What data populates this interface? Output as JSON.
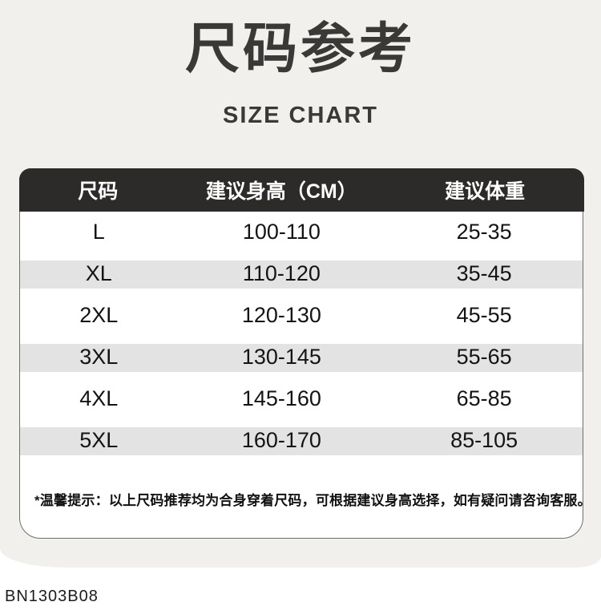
{
  "header": {
    "title_cn": "尺码参考",
    "title_en": "SIZE CHART"
  },
  "table": {
    "columns": [
      "尺码",
      "建议身高（CM）",
      "建议体重"
    ],
    "rows": [
      {
        "size": "L",
        "height_cm": "100-110",
        "weight": "25-35"
      },
      {
        "size": "XL",
        "height_cm": "110-120",
        "weight": "35-45"
      },
      {
        "size": "2XL",
        "height_cm": "120-130",
        "weight": "45-55"
      },
      {
        "size": "3XL",
        "height_cm": "130-145",
        "weight": "55-65"
      },
      {
        "size": "4XL",
        "height_cm": "145-160",
        "weight": "65-85"
      },
      {
        "size": "5XL",
        "height_cm": "160-170",
        "weight": "85-105"
      }
    ],
    "note": "*温馨提示：以上尺码推荐均为合身穿着尺码，可根据建议身高选择，如有疑问请咨询客服。"
  },
  "footer": {
    "product_code": "BN1303B08"
  },
  "colors": {
    "page_background": "#f2f0ed",
    "table_header_background": "#2d2b29",
    "table_stripe": "#e3e3e3",
    "panel_border": "#6e6e6e",
    "text": "#141414"
  }
}
